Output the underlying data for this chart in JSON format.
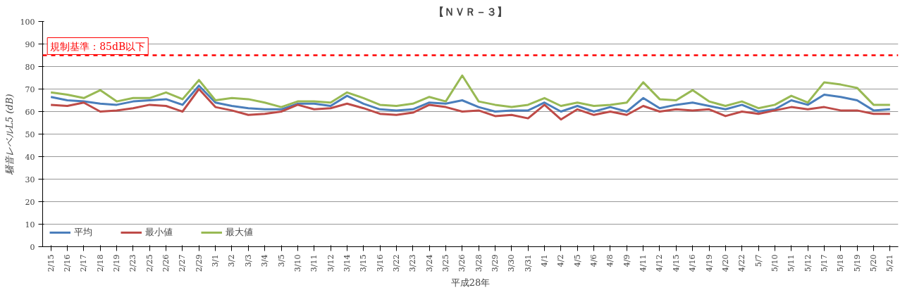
{
  "chart_data": {
    "type": "line",
    "title": "【ＮＶＲ－３】",
    "xlabel": "平成28年",
    "ylabel": "騒音レベルL5 (dB)",
    "categories": [
      "2/15",
      "2/16",
      "2/17",
      "2/18",
      "2/19",
      "2/23",
      "2/25",
      "2/26",
      "2/27",
      "2/29",
      "3/1",
      "3/2",
      "3/3",
      "3/4",
      "3/5",
      "3/10",
      "3/11",
      "3/12",
      "3/14",
      "3/15",
      "3/16",
      "3/22",
      "3/23",
      "3/24",
      "3/25",
      "3/26",
      "3/28",
      "3/29",
      "3/30",
      "3/31",
      "4/1",
      "4/2",
      "4/5",
      "4/6",
      "4/8",
      "4/9",
      "4/11",
      "4/12",
      "4/15",
      "4/16",
      "4/19",
      "4/20",
      "4/22",
      "5/7",
      "5/10",
      "5/11",
      "5/12",
      "5/17",
      "5/18",
      "5/19",
      "5/20",
      "5/21"
    ],
    "series": [
      {
        "name": "平均",
        "color": "#4a7ebb",
        "values": [
          66.5,
          65,
          64.5,
          63.5,
          63,
          64.5,
          65,
          65.5,
          63,
          71.5,
          64,
          62.5,
          61.5,
          61,
          61,
          63.5,
          63.5,
          62.5,
          67,
          63.5,
          61,
          60.5,
          61,
          64,
          63.5,
          65,
          62,
          60,
          60.5,
          60.5,
          64,
          60,
          62.5,
          60,
          62,
          60,
          66,
          61.5,
          63,
          64,
          62.5,
          61,
          63,
          60,
          61,
          65,
          63,
          67.5,
          66.5,
          65,
          60.5,
          61
        ]
      },
      {
        "name": "最小値",
        "color": "#be4b48",
        "values": [
          63,
          62.5,
          64,
          60,
          60.5,
          61.5,
          63,
          62.5,
          60,
          70,
          62,
          60.5,
          58.5,
          59,
          60,
          63,
          61,
          61.5,
          63.5,
          61.5,
          59,
          58.5,
          59.5,
          63,
          62,
          60,
          60.5,
          58,
          58.5,
          57,
          63,
          56.5,
          61,
          58.5,
          60,
          58.5,
          62.5,
          60,
          61,
          60.5,
          61,
          58,
          60,
          59,
          60.5,
          62,
          61,
          62,
          60.5,
          60.5,
          59,
          59
        ]
      },
      {
        "name": "最大値",
        "color": "#98b954",
        "values": [
          68.5,
          67.5,
          66,
          69.5,
          64.5,
          66,
          66,
          68.5,
          65.5,
          74,
          65,
          66,
          65.5,
          64,
          62,
          64.5,
          64.5,
          64,
          68.5,
          66,
          63,
          62.5,
          63.5,
          66.5,
          64.5,
          76,
          64.5,
          63,
          62,
          63,
          66,
          62.5,
          64,
          62.5,
          63,
          64,
          73,
          65.5,
          65,
          69.5,
          64.5,
          62.5,
          64.5,
          61.5,
          63,
          67,
          64,
          73,
          72,
          70.5,
          63,
          63
        ]
      }
    ],
    "ylim": [
      0,
      100
    ],
    "yticks": [
      0,
      10,
      20,
      30,
      40,
      50,
      60,
      70,
      80,
      90,
      100
    ],
    "grid": "y",
    "legend": "bottom left",
    "marker": "none",
    "line_style": "solid",
    "ref_lines": [
      {
        "axis": "y",
        "value": 85,
        "label": "規制基準：85dB以下",
        "color": "#ff0000",
        "line_style": "dashed"
      }
    ]
  }
}
